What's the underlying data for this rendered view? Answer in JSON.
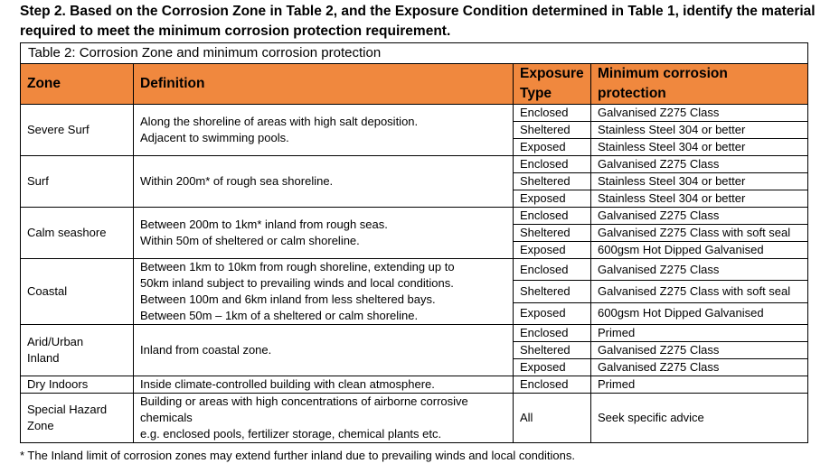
{
  "heading": "Step 2.  Based on the Corrosion Zone in Table 2, and the Exposure Condition determined in Table 1, identify the material required to meet the minimum corrosion protection requirement.",
  "table": {
    "caption": "Table 2: Corrosion Zone and minimum corrosion protection",
    "columns": [
      "Zone",
      "Definition",
      "Exposure Type",
      "Minimum corrosion protection"
    ],
    "zones": [
      {
        "zone": [
          "Severe Surf"
        ],
        "definition": [
          "Along the shoreline of areas with high salt deposition.",
          "Adjacent to swimming pools."
        ],
        "rows": [
          [
            "Enclosed",
            "Galvanised Z275 Class"
          ],
          [
            "Sheltered",
            "Stainless Steel 304 or better"
          ],
          [
            "Exposed",
            "Stainless Steel 304 or better"
          ]
        ]
      },
      {
        "zone": [
          "Surf"
        ],
        "definition": [
          "Within 200m* of rough sea shoreline."
        ],
        "rows": [
          [
            "Enclosed",
            "Galvanised Z275 Class"
          ],
          [
            "Sheltered",
            "Stainless Steel 304 or better"
          ],
          [
            "Exposed",
            "Stainless Steel 304 or better"
          ]
        ]
      },
      {
        "zone": [
          "Calm seashore"
        ],
        "definition": [
          "Between 200m to 1km* inland from rough seas.",
          "Within 50m of sheltered or calm shoreline."
        ],
        "rows": [
          [
            "Enclosed",
            "Galvanised Z275 Class"
          ],
          [
            "Sheltered",
            "Galvanised Z275 Class with soft seal"
          ],
          [
            "Exposed",
            "600gsm Hot Dipped Galvanised"
          ]
        ]
      },
      {
        "zone": [
          "Coastal"
        ],
        "definition": [
          "Between 1km to 10km from rough shoreline, extending up to",
          "50km inland subject to prevailing winds and local conditions.",
          "Between 100m and 6km inland from less sheltered bays.",
          "Between 50m – 1km of a sheltered or calm shoreline."
        ],
        "rows": [
          [
            "Enclosed",
            "Galvanised Z275 Class"
          ],
          [
            "Sheltered",
            "Galvanised Z275 Class with soft seal"
          ],
          [
            "Exposed",
            "600gsm Hot Dipped Galvanised"
          ]
        ]
      },
      {
        "zone": [
          "Arid/Urban",
          "Inland"
        ],
        "definition": [
          "Inland from coastal zone."
        ],
        "rows": [
          [
            "Enclosed",
            "Primed"
          ],
          [
            "Sheltered",
            "Galvanised Z275 Class"
          ],
          [
            "Exposed",
            "Galvanised Z275 Class"
          ]
        ]
      },
      {
        "zone": [
          "Dry Indoors"
        ],
        "definition": [
          "Inside climate-controlled building with clean atmosphere."
        ],
        "rows": [
          [
            "Enclosed",
            "Primed"
          ]
        ]
      },
      {
        "zone": [
          "Special Hazard",
          "Zone"
        ],
        "definition": [
          "Building or areas with high concentrations of airborne corrosive",
          "chemicals",
          "e.g. enclosed pools, fertilizer storage, chemical plants etc."
        ],
        "rows": [
          [
            "All",
            "Seek specific advice"
          ]
        ]
      }
    ]
  },
  "footnote": "* The Inland limit of corrosion zones may extend further inland due to prevailing winds and local conditions."
}
